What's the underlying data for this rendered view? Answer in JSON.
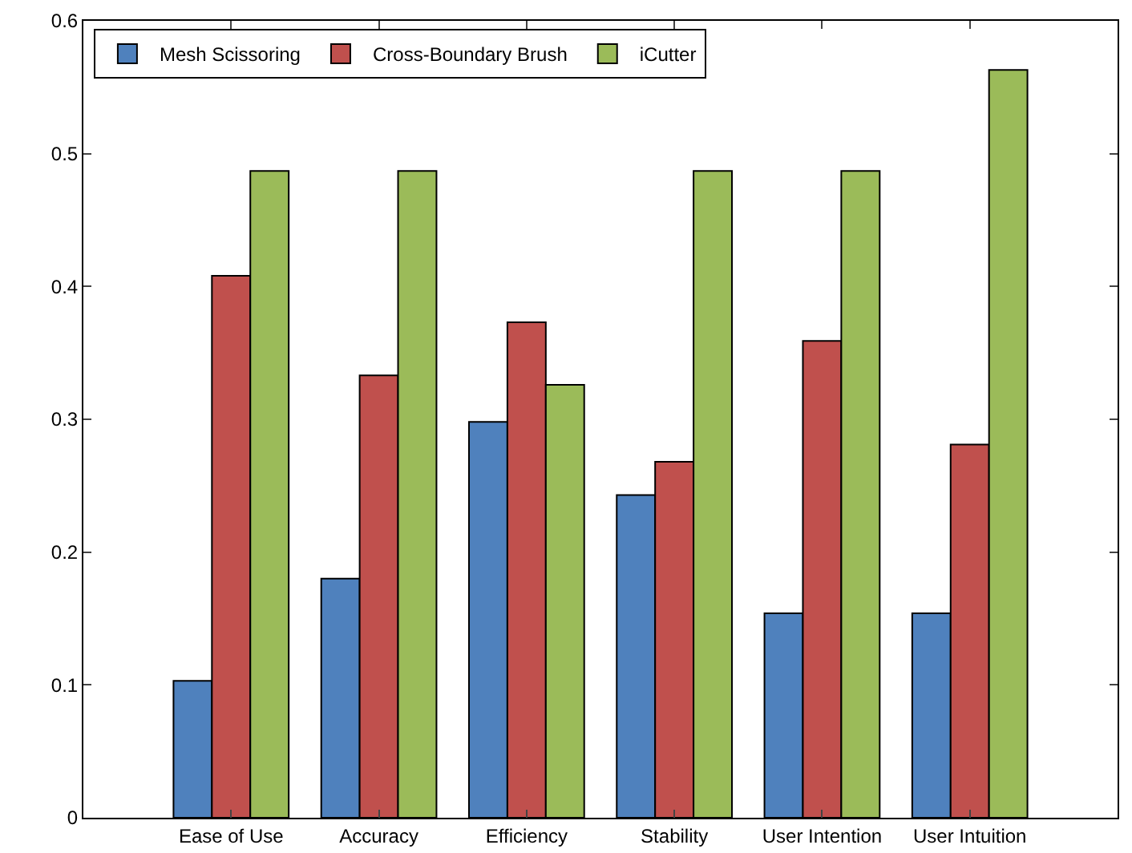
{
  "chart_data": {
    "type": "bar",
    "categories": [
      "Ease of Use",
      "Accuracy",
      "Efficiency",
      "Stability",
      "User Intention",
      "User Intuition"
    ],
    "series": [
      {
        "name": "Mesh Scissoring",
        "color": "#4f81bd",
        "values": [
          0.103,
          0.18,
          0.298,
          0.243,
          0.154,
          0.154
        ]
      },
      {
        "name": "Cross-Boundary Brush",
        "color": "#c0504d",
        "values": [
          0.408,
          0.333,
          0.373,
          0.268,
          0.359,
          0.281
        ]
      },
      {
        "name": "iCutter",
        "color": "#9bbb59",
        "values": [
          0.487,
          0.487,
          0.326,
          0.487,
          0.487,
          0.563
        ]
      }
    ],
    "ylim": [
      0,
      0.6
    ],
    "yticks": [
      0,
      0.1,
      0.2,
      0.3,
      0.4,
      0.5,
      0.6
    ],
    "grid": false,
    "legend": "top left"
  }
}
